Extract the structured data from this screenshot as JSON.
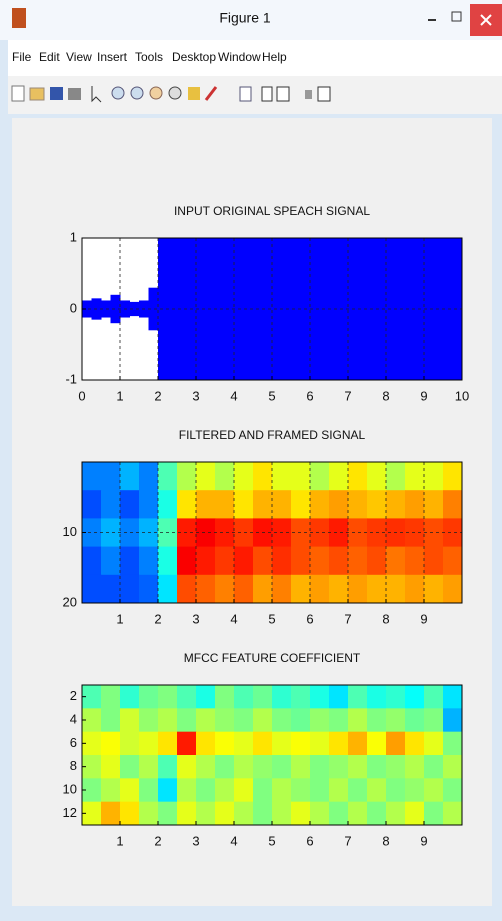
{
  "window": {
    "title": "Figure 1",
    "menu": [
      "File",
      "Edit",
      "View",
      "Insert",
      "Tools",
      "Desktop",
      "Window",
      "Help"
    ]
  },
  "chart_data": [
    {
      "type": "envelope",
      "title": "INPUT ORIGINAL SPEACH SIGNAL",
      "color": "#0000ff",
      "x": [
        0.25,
        0.5,
        0.75,
        1,
        1.25,
        1.5,
        1.75,
        2,
        2.25,
        2.5,
        2.75,
        3,
        3.25,
        3.5,
        3.75,
        4,
        4.25,
        4.5,
        4.75,
        5,
        5.25,
        5.5,
        5.75,
        6,
        6.25,
        6.5,
        6.75,
        7,
        7.25,
        7.5,
        7.75,
        8,
        8.25,
        8.5,
        8.75,
        9,
        9.25,
        9.5,
        9.75,
        10
      ],
      "values": [
        0.12,
        0.15,
        0.12,
        0.2,
        0.12,
        0.1,
        0.12,
        0.3,
        1,
        1,
        1,
        1,
        1,
        1,
        1,
        1,
        1,
        1,
        1,
        1,
        1,
        1,
        1,
        1,
        1,
        1,
        1,
        1,
        1,
        1,
        1,
        1,
        1,
        1,
        1,
        1,
        1,
        1,
        1,
        1
      ],
      "xlim": [
        0,
        10
      ],
      "ylim": [
        -1,
        1
      ],
      "xticks": [
        0,
        1,
        2,
        3,
        4,
        5,
        6,
        7,
        8,
        9,
        10
      ],
      "yticks": [
        -1,
        0,
        1
      ],
      "grid": true
    },
    {
      "type": "heatmap",
      "title": "FILTERED AND FRAMED SIGNAL",
      "colormap": "jet",
      "clim": [
        0,
        1
      ],
      "xlim": [
        0,
        10
      ],
      "ylim": [
        0,
        20
      ],
      "yreverse": true,
      "xticks": [
        1,
        2,
        3,
        4,
        5,
        6,
        7,
        8,
        9
      ],
      "yticks": [
        10,
        20
      ],
      "grid": true,
      "z": [
        [
          0.25,
          0.25,
          0.3,
          0.25,
          0.45,
          0.55,
          0.6,
          0.55,
          0.6,
          0.65,
          0.6,
          0.6,
          0.55,
          0.6,
          0.65,
          0.6,
          0.55,
          0.6,
          0.6,
          0.65
        ],
        [
          0.2,
          0.25,
          0.2,
          0.25,
          0.4,
          0.65,
          0.7,
          0.7,
          0.65,
          0.7,
          0.7,
          0.65,
          0.7,
          0.72,
          0.7,
          0.68,
          0.7,
          0.72,
          0.7,
          0.75
        ],
        [
          0.25,
          0.3,
          0.25,
          0.3,
          0.45,
          0.85,
          0.88,
          0.85,
          0.82,
          0.86,
          0.85,
          0.8,
          0.82,
          0.85,
          0.8,
          0.82,
          0.83,
          0.82,
          0.8,
          0.82
        ],
        [
          0.2,
          0.25,
          0.2,
          0.25,
          0.4,
          0.88,
          0.85,
          0.82,
          0.85,
          0.8,
          0.83,
          0.8,
          0.78,
          0.8,
          0.78,
          0.8,
          0.76,
          0.78,
          0.8,
          0.78
        ],
        [
          0.2,
          0.2,
          0.2,
          0.22,
          0.35,
          0.8,
          0.78,
          0.75,
          0.78,
          0.72,
          0.75,
          0.7,
          0.72,
          0.7,
          0.72,
          0.7,
          0.7,
          0.72,
          0.7,
          0.72
        ]
      ]
    },
    {
      "type": "heatmap",
      "title": "MFCC FEATURE COEFFICIENT",
      "colormap": "jet",
      "clim": [
        0,
        1
      ],
      "xlim": [
        0,
        10
      ],
      "ylim": [
        1,
        13
      ],
      "yreverse": true,
      "xticks": [
        1,
        2,
        3,
        4,
        5,
        6,
        7,
        8,
        9
      ],
      "yticks": [
        2,
        4,
        6,
        8,
        10,
        12
      ],
      "grid": false,
      "z": [
        [
          0.45,
          0.5,
          0.42,
          0.48,
          0.5,
          0.45,
          0.4,
          0.5,
          0.45,
          0.48,
          0.42,
          0.45,
          0.4,
          0.35,
          0.45,
          0.4,
          0.42,
          0.38,
          0.45,
          0.35
        ],
        [
          0.55,
          0.5,
          0.58,
          0.52,
          0.55,
          0.5,
          0.55,
          0.52,
          0.5,
          0.55,
          0.5,
          0.48,
          0.52,
          0.5,
          0.55,
          0.5,
          0.52,
          0.48,
          0.5,
          0.3
        ],
        [
          0.6,
          0.62,
          0.58,
          0.6,
          0.65,
          0.85,
          0.65,
          0.62,
          0.6,
          0.65,
          0.6,
          0.62,
          0.6,
          0.65,
          0.7,
          0.62,
          0.72,
          0.65,
          0.6,
          0.5
        ],
        [
          0.55,
          0.6,
          0.5,
          0.55,
          0.45,
          0.6,
          0.55,
          0.5,
          0.55,
          0.52,
          0.5,
          0.55,
          0.5,
          0.52,
          0.55,
          0.5,
          0.52,
          0.55,
          0.5,
          0.55
        ],
        [
          0.5,
          0.55,
          0.6,
          0.5,
          0.35,
          0.55,
          0.5,
          0.55,
          0.6,
          0.5,
          0.55,
          0.52,
          0.5,
          0.55,
          0.5,
          0.55,
          0.5,
          0.52,
          0.55,
          0.5
        ],
        [
          0.6,
          0.7,
          0.65,
          0.55,
          0.5,
          0.6,
          0.55,
          0.6,
          0.55,
          0.5,
          0.55,
          0.6,
          0.55,
          0.5,
          0.55,
          0.5,
          0.55,
          0.6,
          0.5,
          0.55
        ]
      ]
    }
  ]
}
